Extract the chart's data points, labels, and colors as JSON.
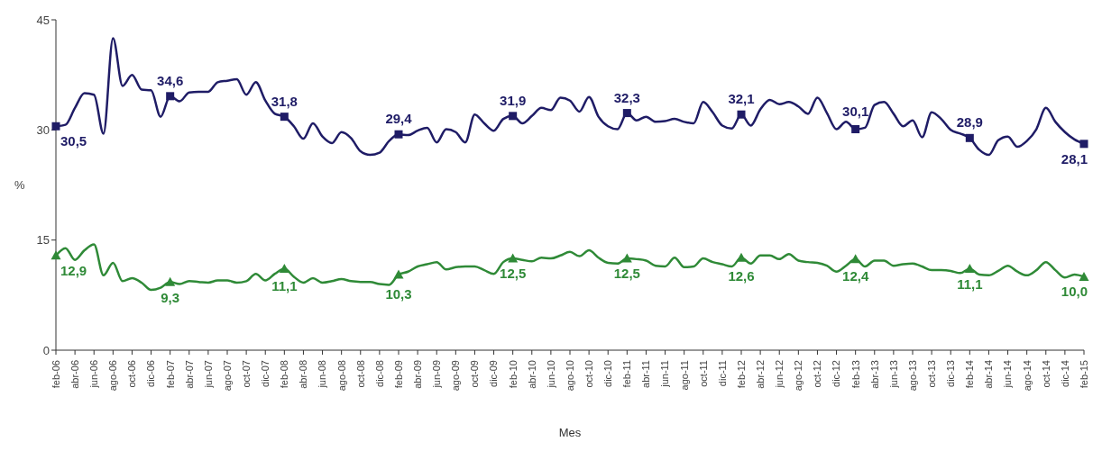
{
  "chart_data": {
    "type": "line",
    "xlabel": "Mes",
    "ylabel": "%",
    "ylim": [
      0,
      45
    ],
    "yticks": [
      0,
      15,
      30,
      45
    ],
    "line_style": "solid",
    "categories": [
      "feb-06",
      null,
      "abr-06",
      null,
      "jun-06",
      null,
      "ago-06",
      null,
      "oct-06",
      null,
      "dic-06",
      null,
      "feb-07",
      null,
      "abr-07",
      null,
      "jun-07",
      null,
      "ago-07",
      null,
      "oct-07",
      null,
      "dic-07",
      null,
      "feb-08",
      null,
      "abr-08",
      null,
      "jun-08",
      null,
      "ago-08",
      null,
      "oct-08",
      null,
      "dic-08",
      null,
      "feb-09",
      null,
      "abr-09",
      null,
      "jun-09",
      null,
      "ago-09",
      null,
      "oct-09",
      null,
      "dic-09",
      null,
      "feb-10",
      null,
      "abr-10",
      null,
      "jun-10",
      null,
      "ago-10",
      null,
      "oct-10",
      null,
      "dic-10",
      null,
      "feb-11",
      null,
      "abr-11",
      null,
      "jun-11",
      null,
      "ago-11",
      null,
      "oct-11",
      null,
      "dic-11",
      null,
      "feb-12",
      null,
      "abr-12",
      null,
      "jun-12",
      null,
      "ago-12",
      null,
      "oct-12",
      null,
      "dic-12",
      null,
      "feb-13",
      null,
      "abr-13",
      null,
      "jun-13",
      null,
      "ago-13",
      null,
      "oct-13",
      null,
      "dic-13",
      null,
      "feb-14",
      null,
      "abr-14",
      null,
      "jun-14",
      null,
      "ago-14",
      null,
      "oct-14",
      null,
      "dic-14",
      null,
      "feb-15"
    ],
    "series": [
      {
        "color": "#1f1c66",
        "values": [
          30.5,
          30.7,
          33.0,
          35.0,
          34.8,
          29.5,
          42.5,
          36.0,
          37.5,
          35.5,
          35.4,
          31.8,
          34.6,
          33.9,
          35.1,
          35.2,
          35.2,
          36.5,
          36.7,
          36.9,
          34.8,
          36.5,
          34.0,
          32.2,
          31.8,
          30.5,
          28.8,
          30.9,
          29.1,
          28.2,
          29.7,
          28.9,
          27.1,
          26.6,
          26.9,
          28.5,
          29.4,
          29.3,
          29.9,
          30.3,
          28.3,
          30.1,
          29.7,
          28.3,
          32.1,
          30.9,
          29.9,
          31.5,
          31.9,
          30.9,
          31.9,
          33.0,
          32.7,
          34.4,
          34.0,
          32.5,
          34.5,
          31.8,
          30.5,
          30.1,
          32.3,
          31.3,
          31.8,
          31.1,
          31.2,
          31.5,
          31.1,
          30.9,
          33.8,
          32.4,
          30.6,
          30.2,
          32.1,
          30.6,
          32.8,
          34.1,
          33.5,
          33.8,
          33.2,
          32.2,
          34.4,
          32.3,
          30.1,
          31.1,
          30.1,
          30.3,
          33.4,
          33.8,
          32.2,
          30.5,
          31.3,
          29.0,
          32.4,
          31.5,
          30.0,
          29.5,
          28.9,
          27.3,
          26.6,
          28.6,
          29.1,
          27.7,
          28.5,
          30.1,
          33.0,
          31.1,
          29.7,
          28.7,
          28.1
        ]
      },
      {
        "color": "#2f8a37",
        "values": [
          12.9,
          13.9,
          12.3,
          13.6,
          14.4,
          10.2,
          11.9,
          9.4,
          9.8,
          9.2,
          8.2,
          8.5,
          9.3,
          9.0,
          9.4,
          9.3,
          9.2,
          9.5,
          9.5,
          9.2,
          9.4,
          10.4,
          9.5,
          10.4,
          11.1,
          10.0,
          9.2,
          9.8,
          9.2,
          9.4,
          9.7,
          9.4,
          9.3,
          9.3,
          9.0,
          8.9,
          10.3,
          10.7,
          11.4,
          11.7,
          12.0,
          11.0,
          11.3,
          11.4,
          11.4,
          10.9,
          10.4,
          12.0,
          12.5,
          12.3,
          12.1,
          12.6,
          12.5,
          12.9,
          13.4,
          12.8,
          13.6,
          12.6,
          11.9,
          11.8,
          12.5,
          12.4,
          12.2,
          11.5,
          11.4,
          12.6,
          11.3,
          11.4,
          12.5,
          12.0,
          11.7,
          11.4,
          12.6,
          11.8,
          12.9,
          12.9,
          12.4,
          13.1,
          12.2,
          12.0,
          11.9,
          11.5,
          10.7,
          11.5,
          12.4,
          11.4,
          12.2,
          12.2,
          11.5,
          11.7,
          11.8,
          11.4,
          10.9,
          10.9,
          10.8,
          10.5,
          11.1,
          10.3,
          10.2,
          10.8,
          11.5,
          10.7,
          10.2,
          10.9,
          12.0,
          10.9,
          9.9,
          10.3,
          10.0
        ]
      },
      {
        "type": "scatter",
        "color": "#1f1c66",
        "marker": "square",
        "x": [
          "feb-06",
          "feb-07",
          "feb-08",
          "feb-09",
          "feb-10",
          "feb-11",
          "feb-12",
          "feb-13",
          "feb-14",
          "feb-15"
        ],
        "values": [
          30.5,
          34.6,
          31.8,
          29.4,
          31.9,
          32.3,
          32.1,
          30.1,
          28.9,
          28.1
        ],
        "value_labels": [
          "30,5",
          "34,6",
          "31,8",
          "29,4",
          "31,9",
          "32,3",
          "32,1",
          "30,1",
          "28,9",
          "28,1"
        ]
      },
      {
        "type": "scatter",
        "color": "#2f8a37",
        "marker": "triangle",
        "x": [
          "feb-06",
          "feb-07",
          "feb-08",
          "feb-09",
          "feb-10",
          "feb-11",
          "feb-12",
          "feb-13",
          "feb-14",
          "feb-15"
        ],
        "values": [
          12.9,
          9.3,
          11.1,
          10.3,
          12.5,
          12.5,
          12.6,
          12.4,
          11.1,
          10.0
        ],
        "value_labels": [
          "12,9",
          "9,3",
          "11,1",
          "10,3",
          "12,5",
          "12,5",
          "12,6",
          "12,4",
          "11,1",
          "10,0"
        ]
      }
    ]
  }
}
